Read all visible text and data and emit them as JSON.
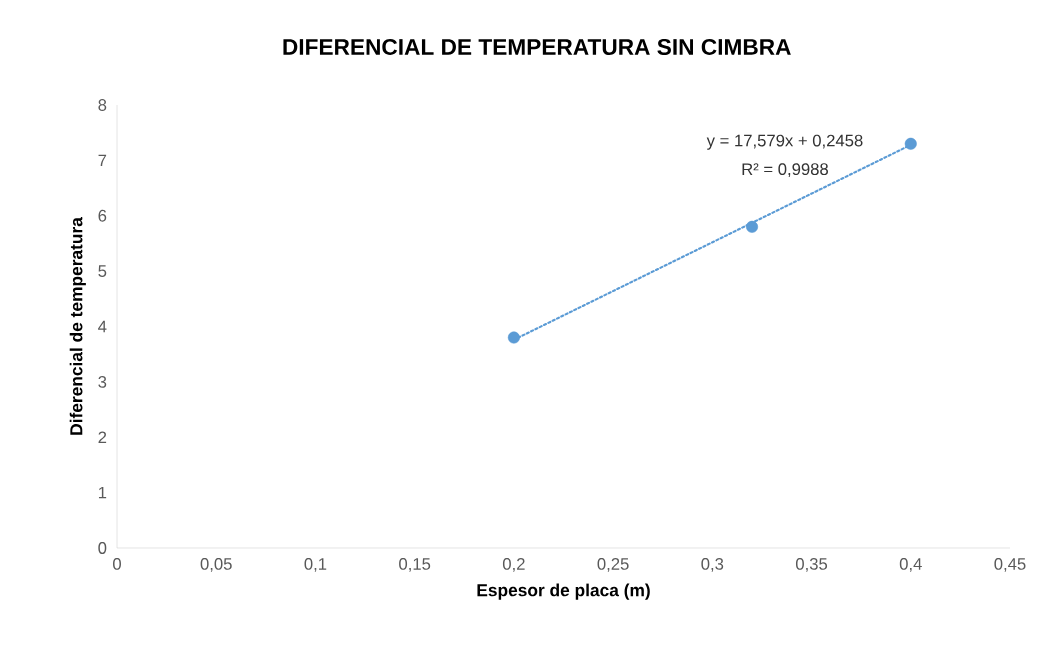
{
  "chart_data": {
    "type": "scatter",
    "title": "DIFERENCIAL DE TEMPERATURA  SIN CIMBRA",
    "xlabel": "Espesor de placa (m)",
    "ylabel": "Diferencial  de temperatura",
    "x": [
      0.2,
      0.32,
      0.4
    ],
    "series": [
      {
        "color": "#5b9bd5",
        "marker": "circle",
        "values": [
          3.8,
          5.8,
          7.3
        ]
      },
      {
        "type": "line",
        "color": "#5b9bd5",
        "line_style": "dotted",
        "marker": "none",
        "x": [
          0.2,
          0.4
        ],
        "values": [
          3.76,
          7.28
        ]
      }
    ],
    "annotations": [
      "y = 17,579x + 0,2458",
      "R² = 0,9988"
    ],
    "xlim": [
      0,
      0.45
    ],
    "ylim": [
      0,
      8
    ],
    "xticks": [
      0,
      {
        "value": 0.05,
        "label": "0,05"
      },
      {
        "value": 0.1,
        "label": "0,1"
      },
      {
        "value": 0.15,
        "label": "0,15"
      },
      {
        "value": 0.2,
        "label": "0,2"
      },
      {
        "value": 0.25,
        "label": "0,25"
      },
      {
        "value": 0.3,
        "label": "0,3"
      },
      {
        "value": 0.35,
        "label": "0,35"
      },
      {
        "value": 0.4,
        "label": "0,4"
      },
      {
        "value": 0.45,
        "label": "0,45"
      }
    ],
    "yticks": [
      0,
      1,
      2,
      3,
      4,
      5,
      6,
      7,
      8
    ],
    "grid": false
  }
}
